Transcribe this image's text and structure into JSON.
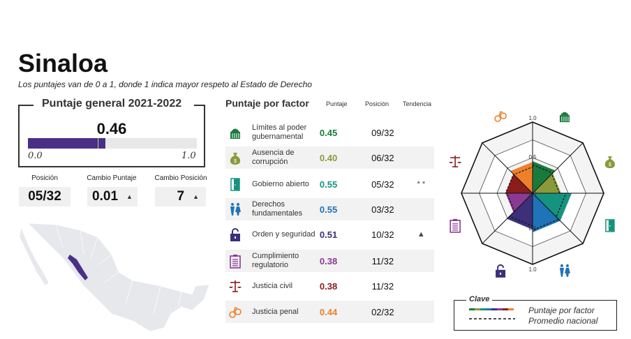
{
  "title": "Sinaloa",
  "subtitle": "Los puntajes van de 0 a 1, donde 1 indica mayor respeto al Estado de Derecho",
  "general": {
    "title": "Puntaje general 2021-2022",
    "score": "0.46",
    "score_value": 0.46,
    "national_avg_value": 0.41,
    "axis_min": "0.0",
    "axis_max": "1.0",
    "bar_color": "#4a2f87"
  },
  "stats": [
    {
      "label": "Posición",
      "value": "05/32",
      "arrow": ""
    },
    {
      "label": "Cambio Puntaje",
      "value": "0.01",
      "arrow": "▲"
    },
    {
      "label": "Cambio Posición",
      "value": "7",
      "arrow": "▲"
    }
  ],
  "factors_header": {
    "title": "Puntaje por factor",
    "score": "Puntaje",
    "position": "Posición",
    "trend": "Tendencia"
  },
  "factors": [
    {
      "name": "Límites al poder gubernamental",
      "score": "0.45",
      "value": 0.45,
      "avg": 0.4,
      "position": "09/32",
      "trend": "",
      "color": "#1a7a3e",
      "icon": "capitol-icon"
    },
    {
      "name": "Ausencia de corrupción",
      "score": "0.40",
      "value": 0.4,
      "avg": 0.38,
      "position": "06/32",
      "trend": "",
      "color": "#8a9a3a",
      "icon": "money-bag-icon"
    },
    {
      "name": "Gobierno abierto",
      "score": "0.55",
      "value": 0.55,
      "avg": 0.47,
      "position": "05/32",
      "trend": "* *",
      "color": "#16937f",
      "icon": "door-icon"
    },
    {
      "name": "Derechos fundamentales",
      "score": "0.55",
      "value": 0.55,
      "avg": 0.52,
      "position": "03/32",
      "trend": "",
      "color": "#1f73b7",
      "icon": "people-icon"
    },
    {
      "name": "Orden y seguridad",
      "score": "0.51",
      "value": 0.51,
      "avg": 0.46,
      "position": "10/32",
      "trend": "▲",
      "color": "#3d2f7a",
      "icon": "padlock-icon"
    },
    {
      "name": "Cumplimiento regulatorio",
      "score": "0.38",
      "value": 0.38,
      "avg": 0.36,
      "position": "11/32",
      "trend": "",
      "color": "#8b3a94",
      "icon": "clipboard-icon"
    },
    {
      "name": "Justicia civil",
      "score": "0.38",
      "value": 0.38,
      "avg": 0.38,
      "position": "11/32",
      "trend": "",
      "color": "#8b1c1c",
      "icon": "scales-icon"
    },
    {
      "name": "Justicia penal",
      "score": "0.44",
      "value": 0.44,
      "avg": 0.37,
      "position": "02/32",
      "trend": "",
      "color": "#f07f2a",
      "icon": "handcuffs-icon"
    }
  ],
  "radar": {
    "labels": {
      "top": "1.0",
      "mid_top": "0.5",
      "center": "0.0",
      "mid_bottom": "0.5",
      "bottom": "1.0"
    }
  },
  "legend": {
    "title": "Clave",
    "series": "Puntaje por factor",
    "average": "Promedio nacional"
  }
}
